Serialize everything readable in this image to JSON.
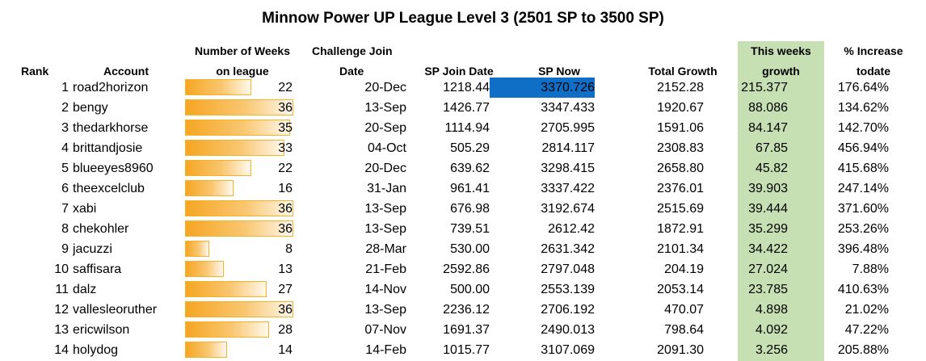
{
  "title": "Minnow Power UP League Level 3 (2501 SP to 3500 SP)",
  "headers": {
    "rank": "Rank",
    "account": "Account",
    "weeks_line1": "Number of Weeks",
    "weeks_line2": "on league",
    "join_line1": "Challenge Join",
    "join_line2": "Date",
    "sp_join": "SP Join Date",
    "sp_now": "SP Now",
    "total_growth": "Total Growth",
    "weekly_line1": "This weeks",
    "weekly_line2": "growth",
    "increase_line1": "% Increase",
    "increase_line2": "todate"
  },
  "colors": {
    "weekly_growth_column_bg": "#c6e0b4",
    "top_sp_now_highlight": "#0f6fc6",
    "databar_orange": "#f6a623"
  },
  "weeks_scale_max": 36,
  "rows": [
    {
      "rank": "1",
      "account": "road2horizon",
      "weeks": 22,
      "join_date": "20-Dec",
      "sp_join": "1218.44",
      "sp_now": "3370.726",
      "total_growth": "2152.28",
      "weekly_growth": "215.377",
      "increase": "176.64%"
    },
    {
      "rank": "2",
      "account": "bengy",
      "weeks": 36,
      "join_date": "13-Sep",
      "sp_join": "1426.77",
      "sp_now": "3347.433",
      "total_growth": "1920.67",
      "weekly_growth": "88.086",
      "increase": "134.62%"
    },
    {
      "rank": "3",
      "account": "thedarkhorse",
      "weeks": 35,
      "join_date": "20-Sep",
      "sp_join": "1114.94",
      "sp_now": "2705.995",
      "total_growth": "1591.06",
      "weekly_growth": "84.147",
      "increase": "142.70%"
    },
    {
      "rank": "4",
      "account": "brittandjosie",
      "weeks": 33,
      "join_date": "04-Oct",
      "sp_join": "505.29",
      "sp_now": "2814.117",
      "total_growth": "2308.83",
      "weekly_growth": "67.85",
      "increase": "456.94%"
    },
    {
      "rank": "5",
      "account": "blueeyes8960",
      "weeks": 22,
      "join_date": "20-Dec",
      "sp_join": "639.62",
      "sp_now": "3298.415",
      "total_growth": "2658.80",
      "weekly_growth": "45.82",
      "increase": "415.68%"
    },
    {
      "rank": "6",
      "account": "theexcelclub",
      "weeks": 16,
      "join_date": "31-Jan",
      "sp_join": "961.41",
      "sp_now": "3337.422",
      "total_growth": "2376.01",
      "weekly_growth": "39.903",
      "increase": "247.14%"
    },
    {
      "rank": "7",
      "account": "xabi",
      "weeks": 36,
      "join_date": "13-Sep",
      "sp_join": "676.98",
      "sp_now": "3192.674",
      "total_growth": "2515.69",
      "weekly_growth": "39.444",
      "increase": "371.60%"
    },
    {
      "rank": "8",
      "account": "chekohler",
      "weeks": 36,
      "join_date": "13-Sep",
      "sp_join": "739.51",
      "sp_now": "2612.42",
      "total_growth": "1872.91",
      "weekly_growth": "35.299",
      "increase": "253.26%"
    },
    {
      "rank": "9",
      "account": "jacuzzi",
      "weeks": 8,
      "join_date": "28-Mar",
      "sp_join": "530.00",
      "sp_now": "2631.342",
      "total_growth": "2101.34",
      "weekly_growth": "34.422",
      "increase": "396.48%"
    },
    {
      "rank": "10",
      "account": "saffisara",
      "weeks": 13,
      "join_date": "21-Feb",
      "sp_join": "2592.86",
      "sp_now": "2797.048",
      "total_growth": "204.19",
      "weekly_growth": "27.024",
      "increase": "7.88%"
    },
    {
      "rank": "11",
      "account": "dalz",
      "weeks": 27,
      "join_date": "14-Nov",
      "sp_join": "500.00",
      "sp_now": "2553.139",
      "total_growth": "2053.14",
      "weekly_growth": "23.785",
      "increase": "410.63%"
    },
    {
      "rank": "12",
      "account": "vallesleoruther",
      "weeks": 36,
      "join_date": "13-Sep",
      "sp_join": "2236.12",
      "sp_now": "2706.192",
      "total_growth": "470.07",
      "weekly_growth": "4.898",
      "increase": "21.02%"
    },
    {
      "rank": "13",
      "account": "ericwilson",
      "weeks": 28,
      "join_date": "07-Nov",
      "sp_join": "1691.37",
      "sp_now": "2490.013",
      "total_growth": "798.64",
      "weekly_growth": "4.092",
      "increase": "47.22%"
    },
    {
      "rank": "14",
      "account": "holydog",
      "weeks": 14,
      "join_date": "14-Feb",
      "sp_join": "1015.77",
      "sp_now": "3107.069",
      "total_growth": "2091.30",
      "weekly_growth": "3.256",
      "increase": "205.88%"
    }
  ]
}
